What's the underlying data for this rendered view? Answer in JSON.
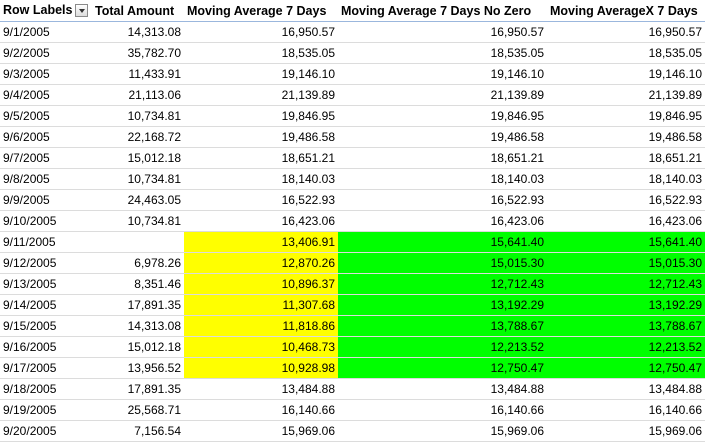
{
  "headers": {
    "row_labels": "Row Labels",
    "total_amount": "Total Amount",
    "ma7": "Moving Average 7 Days",
    "ma7_no_zero": "Moving Average 7 Days No Zero",
    "ma7x": "Moving AverageX 7 Days"
  },
  "icons": {
    "filter": "dropdown-filter-icon"
  },
  "colors": {
    "yellow_highlight": "#ffff00",
    "green_highlight": "#00ff00"
  },
  "rows": [
    {
      "date": "9/1/2005",
      "total": "14,313.08",
      "ma7": "16,950.57",
      "ma7nz": "16,950.57",
      "ma7x": "16,950.57",
      "hl": false
    },
    {
      "date": "9/2/2005",
      "total": "35,782.70",
      "ma7": "18,535.05",
      "ma7nz": "18,535.05",
      "ma7x": "18,535.05",
      "hl": false
    },
    {
      "date": "9/3/2005",
      "total": "11,433.91",
      "ma7": "19,146.10",
      "ma7nz": "19,146.10",
      "ma7x": "19,146.10",
      "hl": false
    },
    {
      "date": "9/4/2005",
      "total": "21,113.06",
      "ma7": "21,139.89",
      "ma7nz": "21,139.89",
      "ma7x": "21,139.89",
      "hl": false
    },
    {
      "date": "9/5/2005",
      "total": "10,734.81",
      "ma7": "19,846.95",
      "ma7nz": "19,846.95",
      "ma7x": "19,846.95",
      "hl": false
    },
    {
      "date": "9/6/2005",
      "total": "22,168.72",
      "ma7": "19,486.58",
      "ma7nz": "19,486.58",
      "ma7x": "19,486.58",
      "hl": false
    },
    {
      "date": "9/7/2005",
      "total": "15,012.18",
      "ma7": "18,651.21",
      "ma7nz": "18,651.21",
      "ma7x": "18,651.21",
      "hl": false
    },
    {
      "date": "9/8/2005",
      "total": "10,734.81",
      "ma7": "18,140.03",
      "ma7nz": "18,140.03",
      "ma7x": "18,140.03",
      "hl": false
    },
    {
      "date": "9/9/2005",
      "total": "24,463.05",
      "ma7": "16,522.93",
      "ma7nz": "16,522.93",
      "ma7x": "16,522.93",
      "hl": false
    },
    {
      "date": "9/10/2005",
      "total": "10,734.81",
      "ma7": "16,423.06",
      "ma7nz": "16,423.06",
      "ma7x": "16,423.06",
      "hl": false
    },
    {
      "date": "9/11/2005",
      "total": "",
      "ma7": "13,406.91",
      "ma7nz": "15,641.40",
      "ma7x": "15,641.40",
      "hl": true
    },
    {
      "date": "9/12/2005",
      "total": "6,978.26",
      "ma7": "12,870.26",
      "ma7nz": "15,015.30",
      "ma7x": "15,015.30",
      "hl": true
    },
    {
      "date": "9/13/2005",
      "total": "8,351.46",
      "ma7": "10,896.37",
      "ma7nz": "12,712.43",
      "ma7x": "12,712.43",
      "hl": true
    },
    {
      "date": "9/14/2005",
      "total": "17,891.35",
      "ma7": "11,307.68",
      "ma7nz": "13,192.29",
      "ma7x": "13,192.29",
      "hl": true
    },
    {
      "date": "9/15/2005",
      "total": "14,313.08",
      "ma7": "11,818.86",
      "ma7nz": "13,788.67",
      "ma7x": "13,788.67",
      "hl": true
    },
    {
      "date": "9/16/2005",
      "total": "15,012.18",
      "ma7": "10,468.73",
      "ma7nz": "12,213.52",
      "ma7x": "12,213.52",
      "hl": true
    },
    {
      "date": "9/17/2005",
      "total": "13,956.52",
      "ma7": "10,928.98",
      "ma7nz": "12,750.47",
      "ma7x": "12,750.47",
      "hl": true
    },
    {
      "date": "9/18/2005",
      "total": "17,891.35",
      "ma7": "13,484.88",
      "ma7nz": "13,484.88",
      "ma7x": "13,484.88",
      "hl": false
    },
    {
      "date": "9/19/2005",
      "total": "25,568.71",
      "ma7": "16,140.66",
      "ma7nz": "16,140.66",
      "ma7x": "16,140.66",
      "hl": false
    },
    {
      "date": "9/20/2005",
      "total": "7,156.54",
      "ma7": "15,969.06",
      "ma7nz": "15,969.06",
      "ma7x": "15,969.06",
      "hl": false
    }
  ]
}
